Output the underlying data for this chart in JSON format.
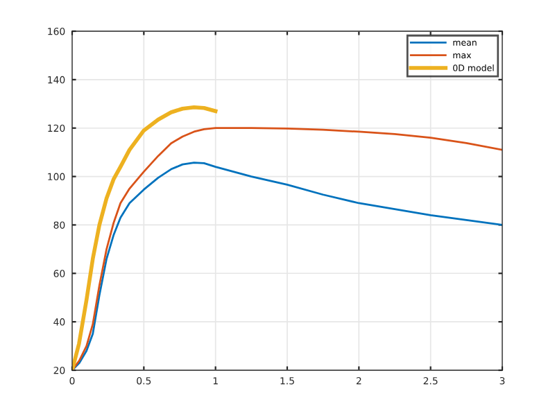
{
  "chart_data": {
    "type": "line",
    "xlim": [
      0,
      3
    ],
    "ylim": [
      20,
      160
    ],
    "xticks": [
      0,
      0.5,
      1,
      1.5,
      2,
      2.5,
      3
    ],
    "yticks": [
      20,
      40,
      60,
      80,
      100,
      120,
      140,
      160
    ],
    "grid": true,
    "legend": "top right",
    "series": [
      {
        "name": "mean",
        "color": "#0072bd",
        "x": [
          0,
          0.05,
          0.1,
          0.144,
          0.19,
          0.24,
          0.29,
          0.337,
          0.4,
          0.5,
          0.6,
          0.69,
          0.77,
          0.85,
          0.92,
          1.0,
          1.25,
          1.5,
          1.75,
          2,
          2.25,
          2.5,
          2.75,
          3
        ],
        "values": [
          20,
          23,
          28,
          35,
          51,
          66,
          76,
          83,
          89,
          94.6,
          99.5,
          103,
          105,
          105.7,
          105.5,
          104,
          100,
          96.6,
          92.5,
          89,
          86.5,
          84,
          82,
          80
        ]
      },
      {
        "name": "max",
        "color": "#d95319",
        "x": [
          0,
          0.05,
          0.1,
          0.144,
          0.19,
          0.24,
          0.29,
          0.337,
          0.4,
          0.5,
          0.6,
          0.69,
          0.77,
          0.85,
          0.92,
          1.0,
          1.25,
          1.5,
          1.75,
          2,
          2.25,
          2.5,
          2.75,
          3
        ],
        "values": [
          20,
          24,
          30,
          39,
          55,
          70,
          81,
          89,
          95,
          102,
          108.5,
          113.7,
          116.5,
          118.5,
          119.5,
          120,
          120,
          119.8,
          119.3,
          118.5,
          117.5,
          116,
          113.8,
          111
        ]
      },
      {
        "name": "0D model",
        "color": "#edb120",
        "x": [
          0,
          0.048,
          0.1,
          0.144,
          0.19,
          0.24,
          0.29,
          0.337,
          0.4,
          0.5,
          0.6,
          0.69,
          0.77,
          0.85,
          0.92,
          1.0
        ],
        "values": [
          20,
          31,
          49,
          66,
          80,
          91,
          99,
          104,
          111,
          119,
          123.5,
          126.5,
          128,
          128.6,
          128.3,
          127
        ]
      }
    ]
  }
}
